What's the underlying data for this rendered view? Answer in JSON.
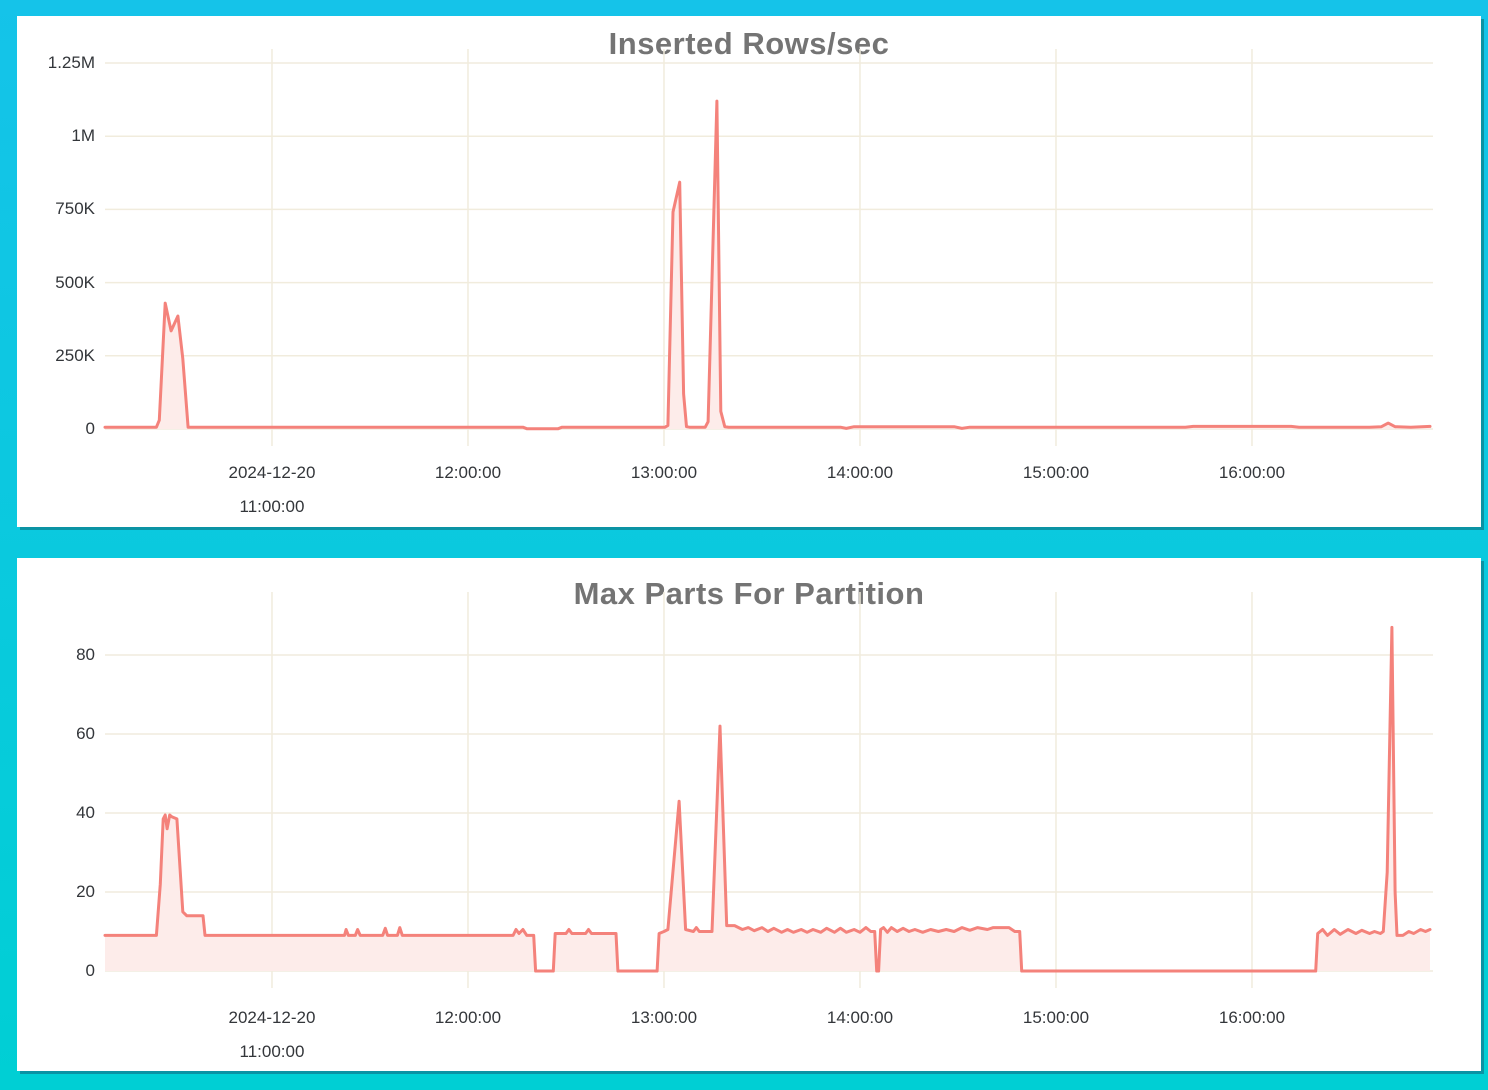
{
  "page": {
    "background_top_color": "#15c3e9",
    "background_bottom_color": "#00cfd4",
    "panel_color": "#ffffff",
    "panel_shadow_color": "#0a93a4"
  },
  "chart_data": [
    {
      "type": "area",
      "title": "Inserted Rows/sec",
      "ylabel": "",
      "xlabel": "",
      "legend": "none",
      "grid": "on",
      "line_color": "#f4827b",
      "fill_color": "#fdecea",
      "grid_color": "#f1ecdd",
      "title_color": "#747474",
      "tick_color": "#33363a",
      "ylim": [
        0,
        1250000
      ],
      "xlim": [
        10.148,
        16.923
      ],
      "x_unit": "time of day on 2024-12-20 (hours)",
      "yticks": [
        {
          "v": 0,
          "label": "0"
        },
        {
          "v": 250000,
          "label": "250K"
        },
        {
          "v": 500000,
          "label": "500K"
        },
        {
          "v": 750000,
          "label": "750K"
        },
        {
          "v": 1000000,
          "label": "1M"
        },
        {
          "v": 1250000,
          "label": "1.25M"
        }
      ],
      "xticks": [
        {
          "t": 11,
          "label": "2024-12-20",
          "label2": "11:00:00"
        },
        {
          "t": 12,
          "label": "12:00:00"
        },
        {
          "t": 13,
          "label": "13:00:00"
        },
        {
          "t": 14,
          "label": "14:00:00"
        },
        {
          "t": 15,
          "label": "15:00:00"
        },
        {
          "t": 16,
          "label": "16:00:00"
        }
      ],
      "series": [
        {
          "name": "inserted_rows_per_sec",
          "points": [
            [
              10.148,
              6000
            ],
            [
              10.41,
              6000
            ],
            [
              10.425,
              30000
            ],
            [
              10.455,
              430000
            ],
            [
              10.485,
              335000
            ],
            [
              10.52,
              386000
            ],
            [
              10.545,
              240000
            ],
            [
              10.572,
              6000
            ],
            [
              11.0,
              6000
            ],
            [
              12.28,
              6000
            ],
            [
              12.3,
              1000
            ],
            [
              12.46,
              1000
            ],
            [
              12.48,
              6000
            ],
            [
              13.005,
              6000
            ],
            [
              13.02,
              12000
            ],
            [
              13.046,
              741000
            ],
            [
              13.08,
              843000
            ],
            [
              13.1,
              120000
            ],
            [
              13.115,
              8000
            ],
            [
              13.13,
              6000
            ],
            [
              13.21,
              6000
            ],
            [
              13.225,
              25000
            ],
            [
              13.27,
              1120000
            ],
            [
              13.29,
              60000
            ],
            [
              13.31,
              8000
            ],
            [
              13.33,
              6000
            ],
            [
              13.9,
              6000
            ],
            [
              13.93,
              2000
            ],
            [
              13.97,
              8000
            ],
            [
              14.48,
              8000
            ],
            [
              14.52,
              2000
            ],
            [
              14.56,
              6000
            ],
            [
              15.66,
              6000
            ],
            [
              15.7,
              9000
            ],
            [
              16.2,
              9000
            ],
            [
              16.24,
              6000
            ],
            [
              16.6,
              6000
            ],
            [
              16.66,
              8000
            ],
            [
              16.695,
              20000
            ],
            [
              16.73,
              8000
            ],
            [
              16.81,
              6000
            ],
            [
              16.908,
              9000
            ]
          ]
        }
      ]
    },
    {
      "type": "area",
      "title": "Max Parts For Partition",
      "ylabel": "",
      "xlabel": "",
      "legend": "none",
      "grid": "on",
      "line_color": "#f4827b",
      "fill_color": "#fdecea",
      "grid_color": "#f1ecdd",
      "title_color": "#747474",
      "tick_color": "#33363a",
      "ylim": [
        0,
        80
      ],
      "xlim": [
        10.148,
        16.923
      ],
      "x_unit": "time of day on 2024-12-20 (hours)",
      "yticks": [
        {
          "v": 0,
          "label": "0"
        },
        {
          "v": 20,
          "label": "20"
        },
        {
          "v": 40,
          "label": "40"
        },
        {
          "v": 60,
          "label": "60"
        },
        {
          "v": 80,
          "label": "80"
        }
      ],
      "xticks": [
        {
          "t": 11,
          "label": "2024-12-20",
          "label2": "11:00:00"
        },
        {
          "t": 12,
          "label": "12:00:00"
        },
        {
          "t": 13,
          "label": "13:00:00"
        },
        {
          "t": 14,
          "label": "14:00:00"
        },
        {
          "t": 15,
          "label": "15:00:00"
        },
        {
          "t": 16,
          "label": "16:00:00"
        }
      ],
      "series": [
        {
          "name": "max_parts_for_partition",
          "points": [
            [
              10.148,
              9
            ],
            [
              10.41,
              9
            ],
            [
              10.43,
              22
            ],
            [
              10.445,
              38.5
            ],
            [
              10.455,
              39.5
            ],
            [
              10.465,
              36
            ],
            [
              10.478,
              39.5
            ],
            [
              10.49,
              39
            ],
            [
              10.515,
              38.5
            ],
            [
              10.545,
              15
            ],
            [
              10.565,
              14
            ],
            [
              10.648,
              14
            ],
            [
              10.658,
              9
            ],
            [
              11.3,
              9
            ],
            [
              11.37,
              9
            ],
            [
              11.378,
              10.5
            ],
            [
              11.39,
              9
            ],
            [
              11.425,
              9
            ],
            [
              11.437,
              10.5
            ],
            [
              11.45,
              9
            ],
            [
              11.565,
              9
            ],
            [
              11.578,
              10.8
            ],
            [
              11.59,
              9
            ],
            [
              11.64,
              9
            ],
            [
              11.652,
              11
            ],
            [
              11.665,
              9
            ],
            [
              12.23,
              9
            ],
            [
              12.245,
              10.5
            ],
            [
              12.26,
              9.5
            ],
            [
              12.28,
              10.5
            ],
            [
              12.3,
              9
            ],
            [
              12.335,
              9
            ],
            [
              12.345,
              0
            ],
            [
              12.435,
              0
            ],
            [
              12.445,
              9.5
            ],
            [
              12.5,
              9.5
            ],
            [
              12.515,
              10.5
            ],
            [
              12.53,
              9.5
            ],
            [
              12.6,
              9.5
            ],
            [
              12.615,
              10.5
            ],
            [
              12.63,
              9.5
            ],
            [
              12.755,
              9.5
            ],
            [
              12.765,
              0
            ],
            [
              12.965,
              0
            ],
            [
              12.975,
              9.5
            ],
            [
              13.0,
              10
            ],
            [
              13.02,
              10.5
            ],
            [
              13.077,
              43
            ],
            [
              13.11,
              10.5
            ],
            [
              13.15,
              10
            ],
            [
              13.165,
              11
            ],
            [
              13.18,
              10
            ],
            [
              13.245,
              10
            ],
            [
              13.286,
              62
            ],
            [
              13.32,
              11.5
            ],
            [
              13.36,
              11.5
            ],
            [
              13.4,
              10.5
            ],
            [
              13.43,
              11
            ],
            [
              13.46,
              10.2
            ],
            [
              13.5,
              11
            ],
            [
              13.53,
              10
            ],
            [
              13.56,
              10.8
            ],
            [
              13.6,
              9.8
            ],
            [
              13.63,
              10.5
            ],
            [
              13.66,
              9.8
            ],
            [
              13.7,
              10.5
            ],
            [
              13.73,
              9.8
            ],
            [
              13.76,
              10.5
            ],
            [
              13.8,
              9.8
            ],
            [
              13.83,
              10.8
            ],
            [
              13.87,
              9.8
            ],
            [
              13.9,
              10.8
            ],
            [
              13.93,
              9.8
            ],
            [
              13.97,
              10.5
            ],
            [
              14.0,
              9.8
            ],
            [
              14.03,
              11
            ],
            [
              14.055,
              10
            ],
            [
              14.075,
              10
            ],
            [
              14.085,
              0
            ],
            [
              14.095,
              0
            ],
            [
              14.105,
              10.5
            ],
            [
              14.12,
              11
            ],
            [
              14.14,
              9.8
            ],
            [
              14.16,
              11
            ],
            [
              14.19,
              10
            ],
            [
              14.22,
              10.8
            ],
            [
              14.25,
              10
            ],
            [
              14.28,
              10.5
            ],
            [
              14.32,
              9.8
            ],
            [
              14.36,
              10.5
            ],
            [
              14.4,
              10
            ],
            [
              14.44,
              10.5
            ],
            [
              14.48,
              10
            ],
            [
              14.52,
              11
            ],
            [
              14.56,
              10.3
            ],
            [
              14.6,
              11
            ],
            [
              14.65,
              10.5
            ],
            [
              14.68,
              11
            ],
            [
              14.76,
              11
            ],
            [
              14.79,
              10
            ],
            [
              14.815,
              10
            ],
            [
              14.825,
              0
            ],
            [
              16.325,
              0
            ],
            [
              16.335,
              9.5
            ],
            [
              16.36,
              10.5
            ],
            [
              16.385,
              9
            ],
            [
              16.42,
              10.5
            ],
            [
              16.45,
              9.3
            ],
            [
              16.49,
              10.5
            ],
            [
              16.53,
              9.5
            ],
            [
              16.56,
              10.3
            ],
            [
              16.6,
              9.5
            ],
            [
              16.625,
              10
            ],
            [
              16.655,
              9.5
            ],
            [
              16.67,
              10
            ],
            [
              16.69,
              25
            ],
            [
              16.714,
              87
            ],
            [
              16.73,
              20
            ],
            [
              16.74,
              9
            ],
            [
              16.77,
              9
            ],
            [
              16.8,
              10
            ],
            [
              16.825,
              9.5
            ],
            [
              16.86,
              10.5
            ],
            [
              16.885,
              10
            ],
            [
              16.908,
              10.5
            ]
          ]
        }
      ]
    }
  ]
}
